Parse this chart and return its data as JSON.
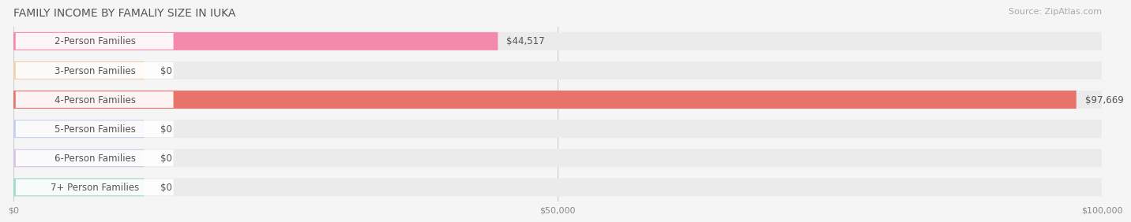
{
  "title": "FAMILY INCOME BY FAMALIY SIZE IN IUKA",
  "source": "Source: ZipAtlas.com",
  "categories": [
    "2-Person Families",
    "3-Person Families",
    "4-Person Families",
    "5-Person Families",
    "6-Person Families",
    "7+ Person Families"
  ],
  "values": [
    44517,
    0,
    97669,
    0,
    0,
    0
  ],
  "bar_colors": [
    "#f48aab",
    "#f5bc8a",
    "#e8736a",
    "#a8bce8",
    "#c9a8e0",
    "#6dcaba"
  ],
  "label_colors": [
    "#f48aab",
    "#f5bc8a",
    "#e8736a",
    "#a8bce8",
    "#c9a8e0",
    "#6dcaba"
  ],
  "value_labels": [
    "$44,517",
    "$0",
    "$97,669",
    "$0",
    "$0",
    "$0"
  ],
  "xlim": [
    0,
    100000
  ],
  "xticks": [
    0,
    50000,
    100000
  ],
  "xtick_labels": [
    "$0",
    "$50,000",
    "$100,000"
  ],
  "background_color": "#f5f5f5",
  "bar_background_color": "#ebebeb",
  "title_fontsize": 10,
  "source_fontsize": 8,
  "label_fontsize": 8.5,
  "value_fontsize": 8.5
}
